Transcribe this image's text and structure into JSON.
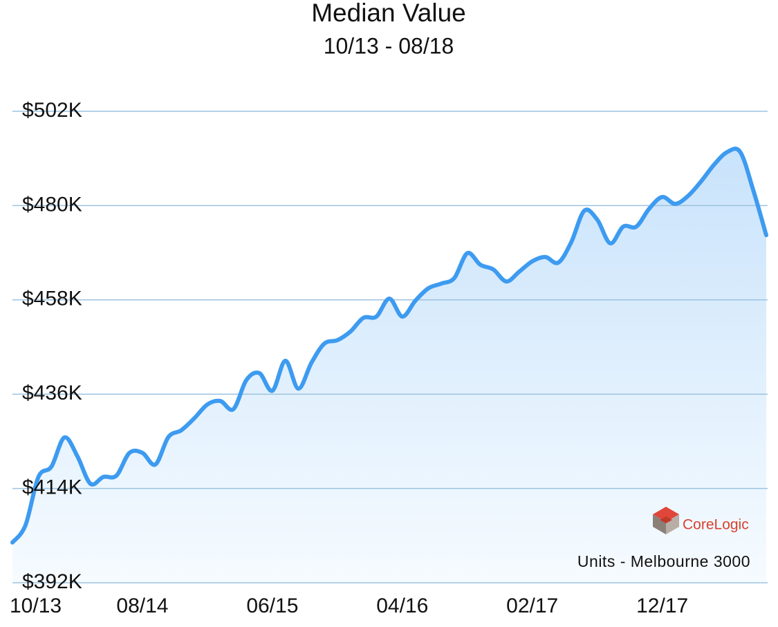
{
  "chart_data": {
    "type": "area",
    "title": "Median Value",
    "subtitle": "10/13 - 08/18",
    "annotation": "Units - Melbourne 3000",
    "watermark": "CoreLogic",
    "color": "#3d9bf0",
    "grid": true,
    "categories": [
      "10/13",
      null,
      null,
      null,
      null,
      null,
      null,
      null,
      null,
      null,
      "08/14",
      null,
      null,
      null,
      null,
      null,
      null,
      null,
      null,
      null,
      "06/15",
      null,
      null,
      null,
      null,
      null,
      null,
      null,
      null,
      null,
      "04/16",
      null,
      null,
      null,
      null,
      null,
      null,
      null,
      null,
      null,
      "02/17",
      null,
      null,
      null,
      null,
      null,
      null,
      null,
      null,
      null,
      "12/17",
      null,
      null,
      null,
      null,
      null,
      null,
      null,
      null
    ],
    "values": [
      401.4,
      405.4,
      416.7,
      419.1,
      425.9,
      421.5,
      415.1,
      416.7,
      417.0,
      422.3,
      422.3,
      419.6,
      426.0,
      427.6,
      430.4,
      433.6,
      434.4,
      432.5,
      439.3,
      440.9,
      436.8,
      443.8,
      437.3,
      443.3,
      447.8,
      448.6,
      450.6,
      453.8,
      454.1,
      458.3,
      454.1,
      457.8,
      460.7,
      461.8,
      463.1,
      468.9,
      466.2,
      465.1,
      462.3,
      464.6,
      467.0,
      468.0,
      466.7,
      471.5,
      478.8,
      476.7,
      471.2,
      475.1,
      475.1,
      479.3,
      482.0,
      480.4,
      482.3,
      485.7,
      489.6,
      492.5,
      492.5,
      483.6,
      473.1
    ],
    "ylim": [
      392,
      502
    ],
    "yticks": [
      {
        "value": 392,
        "label": "$392K"
      },
      {
        "value": 414,
        "label": "$414K"
      },
      {
        "value": 436,
        "label": "$436K"
      },
      {
        "value": 458,
        "label": "$458K"
      },
      {
        "value": 480,
        "label": "$480K"
      },
      {
        "value": 502,
        "label": "$502K"
      }
    ]
  }
}
